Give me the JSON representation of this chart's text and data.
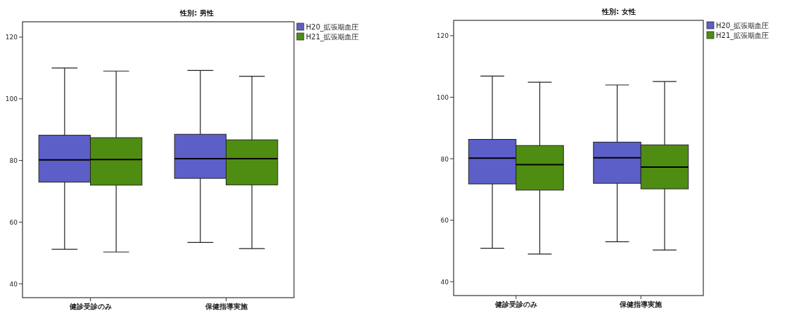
{
  "chart_data": [
    {
      "type": "box",
      "title": "性別: 男性",
      "categories": [
        "健診受診のみ",
        "保健指導実施"
      ],
      "ylim": [
        35.5,
        125
      ],
      "yticks": [
        40,
        60,
        80,
        100,
        120
      ],
      "legend": "top right",
      "series": [
        {
          "name": "H20_拡張期血圧",
          "color": "#5b5fc7",
          "boxes": [
            {
              "low": 51.2,
              "q1": 73.0,
              "median": 80.2,
              "q3": 88.2,
              "high": 110.0
            },
            {
              "low": 53.4,
              "q1": 74.2,
              "median": 80.6,
              "q3": 88.5,
              "high": 109.2
            }
          ]
        },
        {
          "name": "H21_拡張期血圧",
          "color": "#4f8d12",
          "boxes": [
            {
              "low": 50.3,
              "q1": 72.0,
              "median": 80.3,
              "q3": 87.4,
              "high": 109.0
            },
            {
              "low": 51.4,
              "q1": 72.1,
              "median": 80.6,
              "q3": 86.7,
              "high": 107.3
            }
          ]
        }
      ]
    },
    {
      "type": "box",
      "title": "性別: 女性",
      "categories": [
        "健診受診のみ",
        "保健指導実施"
      ],
      "ylim": [
        35.5,
        125
      ],
      "yticks": [
        40,
        60,
        80,
        100,
        120
      ],
      "legend": "top right",
      "series": [
        {
          "name": "H20_拡張期血圧",
          "color": "#5b5fc7",
          "boxes": [
            {
              "low": 50.9,
              "q1": 71.8,
              "median": 80.2,
              "q3": 86.3,
              "high": 106.9
            },
            {
              "low": 53.0,
              "q1": 72.0,
              "median": 80.3,
              "q3": 85.4,
              "high": 104.0
            }
          ]
        },
        {
          "name": "H21_拡張期血圧",
          "color": "#4f8d12",
          "boxes": [
            {
              "low": 49.0,
              "q1": 69.8,
              "median": 78.1,
              "q3": 84.3,
              "high": 104.9
            },
            {
              "low": 50.3,
              "q1": 70.2,
              "median": 77.3,
              "q3": 84.5,
              "high": 105.1
            }
          ]
        }
      ]
    }
  ]
}
